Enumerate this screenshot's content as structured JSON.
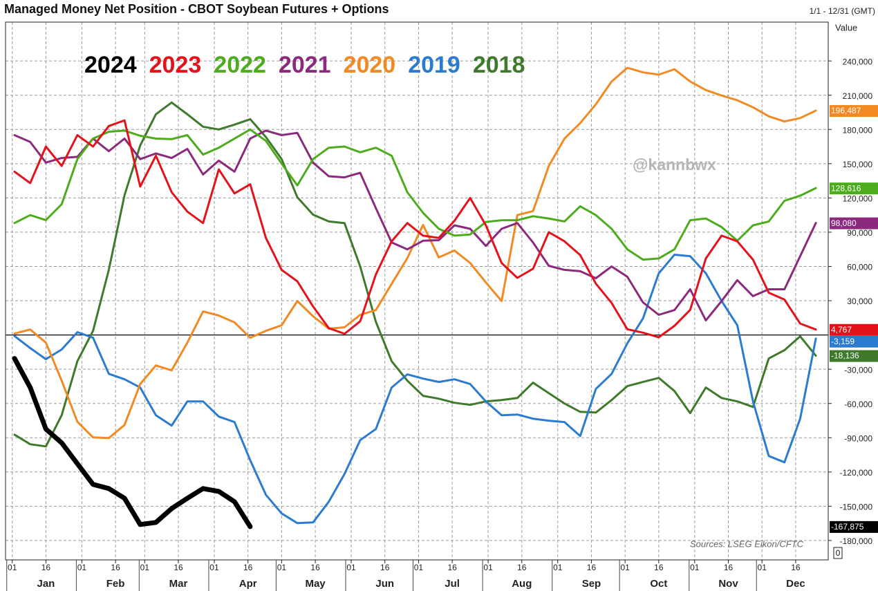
{
  "chart_data": {
    "type": "line",
    "title": "Managed Money Net Position - CBOT Soybean Futures + Options",
    "date_range": "1/1 - 12/31 (GMT)",
    "y_label": "Value",
    "watermark": "@kannbwx",
    "source": "Sources: LSEG Eikon/CFTC",
    "footer_box": "0",
    "grid": true,
    "zero_line": true,
    "xlim": [
      -2,
      364.5
    ],
    "ylim": [
      -197000,
      274000
    ],
    "xticks": [
      {
        "value": 1,
        "label": "01"
      },
      {
        "value": 16,
        "label": "16"
      },
      {
        "value": 32,
        "label": "01"
      },
      {
        "value": 47,
        "label": "16"
      },
      {
        "value": 60,
        "label": "01"
      },
      {
        "value": 75,
        "label": "16"
      },
      {
        "value": 91,
        "label": "01"
      },
      {
        "value": 106,
        "label": "16"
      },
      {
        "value": 121,
        "label": "01"
      },
      {
        "value": 136,
        "label": "16"
      },
      {
        "value": 152,
        "label": "01"
      },
      {
        "value": 167,
        "label": "16"
      },
      {
        "value": 182,
        "label": "01"
      },
      {
        "value": 197,
        "label": "16"
      },
      {
        "value": 213,
        "label": "01"
      },
      {
        "value": 228,
        "label": "16"
      },
      {
        "value": 244,
        "label": "01"
      },
      {
        "value": 259,
        "label": "16"
      },
      {
        "value": 274,
        "label": "01"
      },
      {
        "value": 289,
        "label": "16"
      },
      {
        "value": 305,
        "label": "01"
      },
      {
        "value": 320,
        "label": "16"
      },
      {
        "value": 335,
        "label": "01"
      },
      {
        "value": 350,
        "label": "16"
      }
    ],
    "months": [
      "Jan",
      "Feb",
      "Mar",
      "Apr",
      "May",
      "Jun",
      "Jul",
      "Aug",
      "Sep",
      "Oct",
      "Nov",
      "Dec"
    ],
    "yticks": [
      {
        "value": 240000,
        "label": "240,000"
      },
      {
        "value": 210000,
        "label": "210,000"
      },
      {
        "value": 180000,
        "label": "180,000"
      },
      {
        "value": 150000,
        "label": "150,000"
      },
      {
        "value": 120000,
        "label": "120,000"
      },
      {
        "value": 90000,
        "label": "90,000"
      },
      {
        "value": 60000,
        "label": "60,000"
      },
      {
        "value": 30000,
        "label": "30,000"
      },
      {
        "value": -30000,
        "label": "-30,000"
      },
      {
        "value": -60000,
        "label": "-60,000"
      },
      {
        "value": -90000,
        "label": "-90,000"
      },
      {
        "value": -120000,
        "label": "-120,000"
      },
      {
        "value": -150000,
        "label": "-150,000"
      },
      {
        "value": -180000,
        "label": "-180,000"
      }
    ],
    "x": [
      2,
      9,
      16,
      23,
      30,
      37,
      44,
      51,
      58,
      65,
      72,
      79,
      86,
      93,
      100,
      107,
      114,
      121,
      128,
      135,
      142,
      149,
      156,
      163,
      170,
      177,
      184,
      191,
      198,
      205,
      212,
      219,
      226,
      233,
      240,
      247,
      254,
      261,
      268,
      275,
      282,
      289,
      296,
      303,
      310,
      317,
      324,
      331,
      338,
      345,
      352,
      359
    ],
    "series": [
      {
        "name": "2024",
        "color": "#000000",
        "width": 7,
        "last_label": "-167,875",
        "values": [
          -20600,
          -46000,
          -82400,
          -94500,
          -112700,
          -130900,
          -134500,
          -143000,
          -166000,
          -164200,
          -152000,
          -143000,
          -134500,
          -137000,
          -146000,
          -167875,
          null,
          null,
          null,
          null,
          null,
          null,
          null,
          null,
          null,
          null,
          null,
          null,
          null,
          null,
          null,
          null,
          null,
          null,
          null,
          null,
          null,
          null,
          null,
          null,
          null,
          null,
          null,
          null,
          null,
          null,
          null,
          null,
          null,
          null,
          null,
          null
        ]
      },
      {
        "name": "2023",
        "color": "#e3121b",
        "width": 3,
        "last_label": "4,767",
        "values": [
          143000,
          133000,
          165000,
          148000,
          175000,
          165000,
          183000,
          188000,
          130000,
          157000,
          125000,
          108000,
          98000,
          145000,
          124000,
          132000,
          85000,
          57000,
          47000,
          25000,
          6000,
          1000,
          12000,
          53000,
          82000,
          98000,
          87000,
          85000,
          100000,
          120000,
          96000,
          63000,
          50000,
          58000,
          90000,
          82000,
          70000,
          45000,
          28000,
          5000,
          2000,
          -2000,
          8000,
          22000,
          67000,
          87000,
          82000,
          66000,
          37000,
          31000,
          10000,
          4767
        ]
      },
      {
        "name": "2022",
        "color": "#4cac1c",
        "width": 3,
        "last_label": "128,616",
        "values": [
          98000,
          105000,
          100600,
          114500,
          154000,
          172000,
          178000,
          179000,
          174500,
          172000,
          171500,
          175000,
          158000,
          164000,
          172000,
          180000,
          170000,
          150000,
          131000,
          154000,
          164000,
          165000,
          160000,
          164000,
          157000,
          125000,
          107000,
          93000,
          87000,
          88000,
          99000,
          100500,
          100500,
          104000,
          102000,
          99400,
          112700,
          105000,
          93000,
          75000,
          66000,
          67000,
          75000,
          100500,
          102000,
          94500,
          82500,
          96000,
          99400,
          117500,
          122000,
          128616
        ]
      },
      {
        "name": "2021",
        "color": "#8b2a7c",
        "width": 3,
        "last_label": "98,080",
        "values": [
          175000,
          169000,
          151000,
          155000,
          156000,
          172000,
          161000,
          172000,
          154000,
          159000,
          155000,
          163000,
          140600,
          152700,
          143000,
          172000,
          179000,
          175000,
          177000,
          151000,
          139000,
          138000,
          142000,
          111000,
          81000,
          75000,
          82500,
          83000,
          96000,
          93000,
          78000,
          93000,
          98000,
          81000,
          60600,
          57000,
          55800,
          49700,
          60000,
          51000,
          28500,
          17600,
          21800,
          40000,
          12700,
          29700,
          48000,
          34000,
          40000,
          40000,
          69000,
          98080
        ]
      },
      {
        "name": "2020",
        "color": "#f28a23",
        "width": 3,
        "last_label": "196,487",
        "values": [
          1200,
          4800,
          -6700,
          -40000,
          -76000,
          -89700,
          -90300,
          -78800,
          -43000,
          -26700,
          -31000,
          -6700,
          20600,
          17000,
          11000,
          -2400,
          3600,
          8500,
          29700,
          16400,
          5500,
          6700,
          17600,
          21800,
          44800,
          67300,
          96400,
          67900,
          74000,
          63000,
          46000,
          29700,
          105000,
          108500,
          148000,
          172000,
          185500,
          202000,
          222000,
          234000,
          230000,
          228000,
          232700,
          222000,
          214500,
          209700,
          205500,
          199400,
          191500,
          187000,
          190000,
          196487
        ]
      },
      {
        "name": "2019",
        "color": "#2b7bd0",
        "width": 3,
        "last_label": "-3,159",
        "values": [
          -1000,
          -11500,
          -21200,
          -12700,
          2400,
          -2400,
          -34000,
          -38800,
          -46000,
          -70300,
          -79400,
          -58200,
          -58200,
          -71500,
          -76300,
          -109700,
          -140000,
          -156300,
          -164800,
          -164200,
          -146000,
          -121800,
          -92100,
          -82400,
          -46000,
          -34500,
          -38200,
          -41200,
          -38800,
          -43000,
          -58200,
          -70300,
          -69700,
          -73300,
          -75100,
          -76300,
          -88500,
          -47300,
          -34000,
          -7300,
          14500,
          54000,
          70300,
          69000,
          54000,
          29700,
          8500,
          -58200,
          -106000,
          -111500,
          -73300,
          -3159
        ]
      },
      {
        "name": "2018",
        "color": "#3f7a2c",
        "width": 3,
        "last_label": "-18,136",
        "values": [
          -87300,
          -95700,
          -97600,
          -70300,
          -23000,
          3600,
          57000,
          122400,
          166000,
          193300,
          203600,
          193300,
          182400,
          180000,
          184200,
          189000,
          173300,
          154000,
          120600,
          105400,
          99400,
          98000,
          60000,
          11500,
          -23000,
          -40000,
          -53300,
          -55800,
          -59400,
          -61200,
          -58200,
          -57000,
          -55200,
          -41800,
          -50900,
          -60000,
          -67300,
          -67900,
          -57000,
          -44800,
          -41200,
          -37600,
          -49100,
          -68500,
          -46000,
          -55200,
          -58200,
          -63000,
          -20600,
          -13300,
          -1200,
          -18136
        ]
      }
    ]
  }
}
